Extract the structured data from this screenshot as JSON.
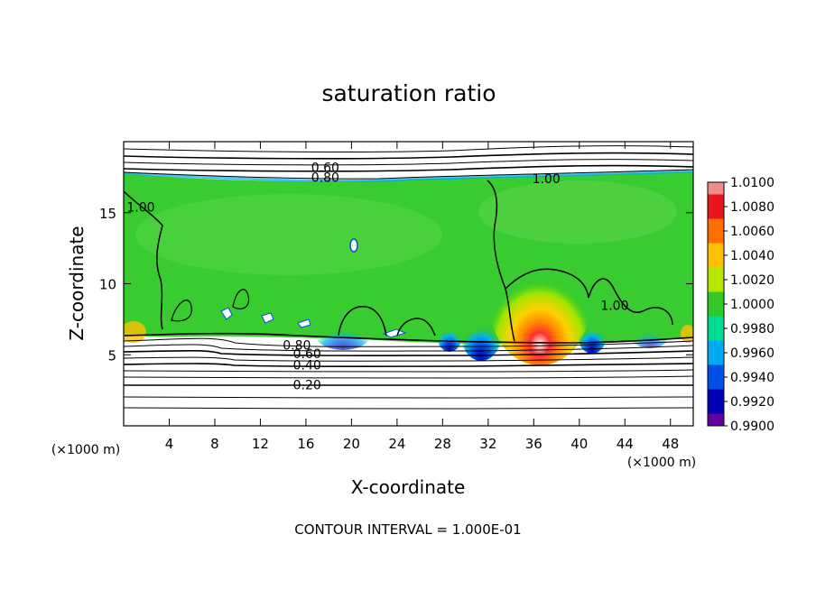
{
  "chart_data": {
    "type": "heatmap",
    "title": "saturation ratio",
    "xlabel": "X-coordinate",
    "ylabel": "Z-coordinate",
    "x_unit_left": "(×1000 m)",
    "x_unit_right": "(×1000 m)",
    "xlim": [
      0,
      50
    ],
    "ylim": [
      0,
      20
    ],
    "x_ticks": [
      4,
      8,
      12,
      16,
      20,
      24,
      28,
      32,
      36,
      40,
      44,
      48
    ],
    "y_ticks": [
      5,
      10,
      15
    ],
    "footer": "CONTOUR INTERVAL = 1.000E-01",
    "colorbar": {
      "labels": [
        "1.0100",
        "1.0080",
        "1.0060",
        "1.0040",
        "1.0020",
        "1.0000",
        "0.9980",
        "0.9960",
        "0.9940",
        "0.9920",
        "0.9900"
      ],
      "colors": [
        "#f08c8c",
        "#e8141e",
        "#ff6e00",
        "#ffc000",
        "#b4e600",
        "#32c828",
        "#00dc96",
        "#00aaf0",
        "#0050e6",
        "#0000b4",
        "#6400a0"
      ]
    },
    "contour_labels": [
      {
        "text": "0.60",
        "x": 17.7,
        "y": 18.0
      },
      {
        "text": "0.80",
        "x": 17.7,
        "y": 17.3
      },
      {
        "text": "1.00",
        "x": 37.1,
        "y": 17.2
      },
      {
        "text": "1.00",
        "x": 1.5,
        "y": 15.2
      },
      {
        "text": "1.00",
        "x": 43.1,
        "y": 8.3
      },
      {
        "text": "0.80",
        "x": 15.2,
        "y": 5.5
      },
      {
        "text": "0.60",
        "x": 16.1,
        "y": 4.9
      },
      {
        "text": "0.40",
        "x": 16.1,
        "y": 4.1
      },
      {
        "text": "0.20",
        "x": 16.1,
        "y": 2.7
      }
    ]
  }
}
